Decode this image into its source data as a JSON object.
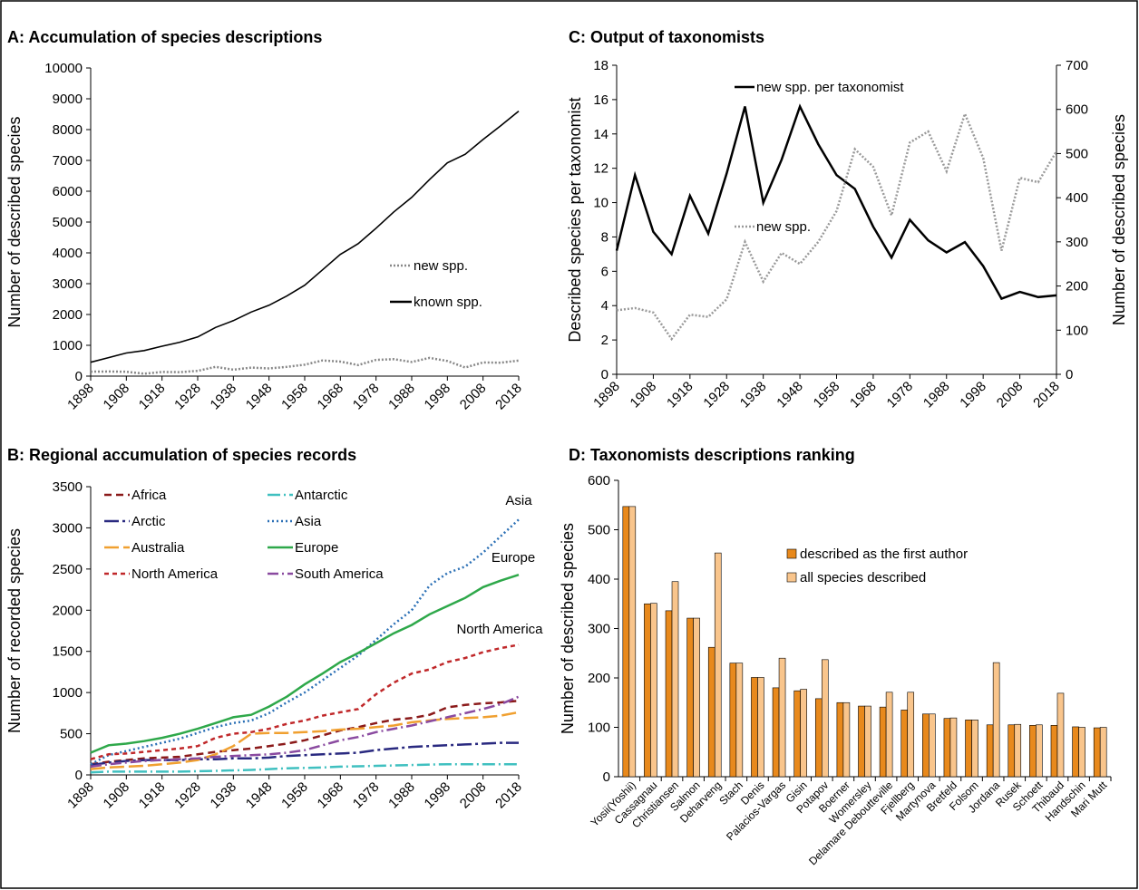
{
  "chart_data": [
    {
      "type": "line",
      "title": "A: Accumulation of species descriptions",
      "ylabel": "Number of described species",
      "x": [
        1898,
        1903,
        1908,
        1913,
        1918,
        1923,
        1928,
        1933,
        1938,
        1943,
        1948,
        1953,
        1958,
        1963,
        1968,
        1973,
        1978,
        1983,
        1988,
        1993,
        1998,
        2003,
        2008,
        2013,
        2018
      ],
      "xlim": [
        1898,
        2018
      ],
      "xticks": [
        1898,
        1908,
        1918,
        1928,
        1938,
        1948,
        1958,
        1968,
        1978,
        1988,
        1998,
        2008,
        2018
      ],
      "ylim": [
        0,
        10000
      ],
      "yticks": [
        0,
        1000,
        2000,
        3000,
        4000,
        5000,
        6000,
        7000,
        8000,
        9000,
        10000
      ],
      "series": [
        {
          "name": "new spp.",
          "color": "#888888",
          "dash": "2,2",
          "values": [
            145,
            150,
            140,
            80,
            135,
            130,
            170,
            300,
            210,
            275,
            250,
            300,
            370,
            510,
            470,
            360,
            525,
            550,
            460,
            590,
            490,
            280,
            445,
            435,
            505
          ]
        },
        {
          "name": "known spp.",
          "color": "#000000",
          "dash": "none",
          "values": [
            450,
            600,
            750,
            830,
            970,
            1100,
            1270,
            1580,
            1800,
            2080,
            2300,
            2600,
            2950,
            3450,
            3950,
            4300,
            4800,
            5330,
            5800,
            6380,
            6920,
            7200,
            7680,
            8130,
            8600
          ]
        }
      ]
    },
    {
      "type": "line",
      "title": "B: Regional accumulation of species records",
      "ylabel": "Number of recorded species",
      "annotations": [
        "Asia",
        "Europe",
        "North America"
      ],
      "x": [
        1898,
        1903,
        1908,
        1913,
        1918,
        1923,
        1928,
        1933,
        1938,
        1943,
        1948,
        1953,
        1958,
        1963,
        1968,
        1973,
        1978,
        1983,
        1988,
        1993,
        1998,
        2003,
        2008,
        2013,
        2018
      ],
      "xlim": [
        1898,
        2018
      ],
      "xticks": [
        1898,
        1908,
        1918,
        1928,
        1938,
        1948,
        1958,
        1968,
        1978,
        1988,
        1998,
        2008,
        2018
      ],
      "ylim": [
        0,
        3500
      ],
      "yticks": [
        0,
        500,
        1000,
        1500,
        2000,
        2500,
        3000,
        3500
      ],
      "series": [
        {
          "name": "Africa",
          "color": "#8b1a1a",
          "dash": "8,5",
          "values": [
            130,
            160,
            180,
            200,
            210,
            220,
            250,
            280,
            300,
            320,
            350,
            380,
            420,
            480,
            540,
            580,
            630,
            670,
            690,
            730,
            820,
            850,
            870,
            880,
            900
          ]
        },
        {
          "name": "Antarctic",
          "color": "#40c0c0",
          "dash": "14,4,2,4",
          "values": [
            30,
            40,
            40,
            40,
            40,
            40,
            45,
            50,
            55,
            60,
            70,
            80,
            85,
            90,
            100,
            105,
            110,
            115,
            120,
            125,
            130,
            130,
            130,
            130,
            130
          ]
        },
        {
          "name": "Arctic",
          "color": "#2a2a80",
          "dash": "16,4,3,4",
          "values": [
            120,
            150,
            170,
            180,
            180,
            180,
            190,
            190,
            200,
            200,
            210,
            230,
            240,
            250,
            260,
            270,
            300,
            320,
            340,
            350,
            360,
            370,
            380,
            390,
            390
          ]
        },
        {
          "name": "Asia",
          "color": "#2a6fb5",
          "dash": "2,3",
          "values": [
            130,
            240,
            290,
            340,
            390,
            440,
            510,
            580,
            630,
            660,
            750,
            880,
            1000,
            1150,
            1300,
            1450,
            1640,
            1830,
            2000,
            2300,
            2450,
            2530,
            2700,
            2900,
            3100
          ]
        },
        {
          "name": "Australia",
          "color": "#f0a030",
          "dash": "16,5",
          "values": [
            70,
            90,
            100,
            110,
            130,
            150,
            180,
            250,
            350,
            500,
            510,
            510,
            520,
            530,
            550,
            560,
            580,
            600,
            640,
            660,
            680,
            690,
            700,
            720,
            760
          ]
        },
        {
          "name": "Europe",
          "color": "#2ea84a",
          "dash": "none",
          "values": [
            270,
            360,
            380,
            410,
            450,
            500,
            560,
            630,
            700,
            730,
            830,
            950,
            1100,
            1230,
            1370,
            1480,
            1600,
            1720,
            1820,
            1950,
            2050,
            2150,
            2280,
            2360,
            2430
          ]
        },
        {
          "name": "North America",
          "color": "#c0282a",
          "dash": "5,4",
          "values": [
            190,
            250,
            260,
            280,
            300,
            320,
            350,
            450,
            500,
            520,
            560,
            620,
            660,
            720,
            760,
            800,
            980,
            1120,
            1230,
            1280,
            1370,
            1420,
            1490,
            1540,
            1580
          ]
        },
        {
          "name": "South America",
          "color": "#8a4aa0",
          "dash": "12,4,2,4",
          "values": [
            100,
            130,
            150,
            170,
            180,
            190,
            200,
            220,
            230,
            240,
            250,
            270,
            300,
            360,
            420,
            460,
            520,
            560,
            600,
            650,
            700,
            750,
            800,
            860,
            950
          ]
        }
      ]
    },
    {
      "type": "line",
      "title": "C: Output of taxonomists",
      "ylabel": "Described  species per taxonomist",
      "y2label": "Number of described  species",
      "x": [
        1898,
        1903,
        1908,
        1913,
        1918,
        1923,
        1928,
        1933,
        1938,
        1943,
        1948,
        1953,
        1958,
        1963,
        1968,
        1973,
        1978,
        1983,
        1988,
        1993,
        1998,
        2003,
        2008,
        2013,
        2018
      ],
      "xlim": [
        1898,
        2018
      ],
      "xticks": [
        1898,
        1908,
        1918,
        1928,
        1938,
        1948,
        1958,
        1968,
        1978,
        1988,
        1998,
        2008,
        2018
      ],
      "ylim": [
        0,
        18
      ],
      "yticks": [
        0,
        2,
        4,
        6,
        8,
        10,
        12,
        14,
        16,
        18
      ],
      "y2lim": [
        0,
        700
      ],
      "y2ticks": [
        0,
        100,
        200,
        300,
        400,
        500,
        600,
        700
      ],
      "series": [
        {
          "name": "new spp. per taxonomist",
          "color": "#000000",
          "dash": "none",
          "values": [
            7.2,
            11.6,
            8.3,
            7.0,
            10.4,
            8.2,
            11.7,
            15.6,
            10.0,
            12.5,
            15.6,
            13.4,
            11.6,
            10.8,
            8.6,
            6.8,
            9.0,
            7.8,
            7.1,
            7.7,
            6.3,
            4.4,
            4.8,
            4.5,
            4.6
          ]
        },
        {
          "name": "new spp.",
          "color": "#999999",
          "dash": "2,2",
          "axis": "y2",
          "values": [
            145,
            150,
            140,
            80,
            135,
            130,
            170,
            300,
            210,
            275,
            250,
            300,
            370,
            510,
            470,
            360,
            525,
            550,
            460,
            590,
            490,
            280,
            445,
            435,
            505
          ]
        }
      ]
    },
    {
      "type": "bar",
      "title": "D: Taxonomists descriptions ranking",
      "ylabel": "Number of described species",
      "categories": [
        "Yosii(Yoshii)",
        "Cassagnau",
        "Christiansen",
        "Salmon",
        "Deharveng",
        "Stach",
        "Denis",
        "Palacios-Vargas",
        "Gisin",
        "Potapov",
        "Boerner",
        "Womersley",
        "Delamare Deboutteville",
        "Fjellberg",
        "Martynova",
        "Bretfeld",
        "Folsom",
        "Jordana",
        "Rusek",
        "Schoett",
        "Thibaud",
        "Handschin",
        "Mari Mutt"
      ],
      "ylim": [
        0,
        600
      ],
      "yticks": [
        0,
        100,
        200,
        300,
        400,
        500,
        600
      ],
      "series": [
        {
          "name": "described as the first author",
          "color": "#e8891c",
          "values": [
            547,
            350,
            336,
            321,
            262,
            230,
            201,
            180,
            174,
            158,
            150,
            143,
            141,
            135,
            127,
            118,
            115,
            105,
            105,
            104,
            104,
            101,
            99
          ]
        },
        {
          "name": "all species described",
          "color": "#f9c58c",
          "values": [
            547,
            351,
            395,
            321,
            453,
            230,
            201,
            240,
            177,
            237,
            150,
            143,
            171,
            171,
            127,
            119,
            115,
            231,
            106,
            105,
            169,
            100,
            100
          ]
        }
      ]
    }
  ]
}
